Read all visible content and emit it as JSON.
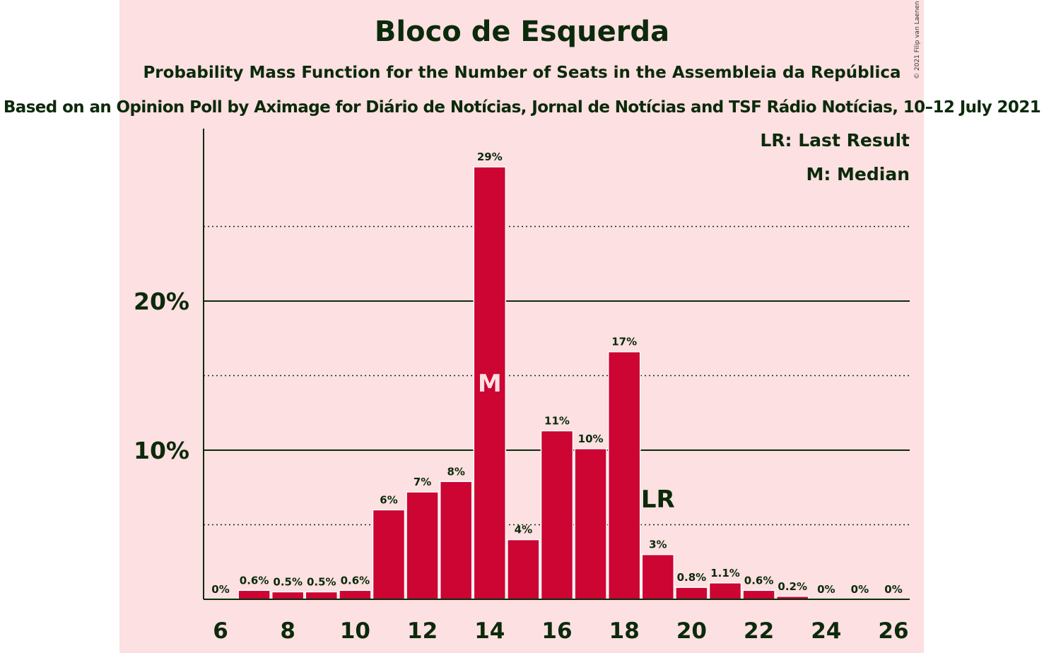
{
  "header": {
    "title": "Bloco de Esquerda",
    "subtitle": "Probability Mass Function for the Number of Seats in the Assembleia da República",
    "source": "Based on an Opinion Poll by Aximage for Diário de Notícias, Jornal de Notícias and TSF Rádio Notícias, 10–12 July 2021",
    "copyright": "© 2021 Filip van Laenen"
  },
  "legend": {
    "last_result": "LR: Last Result",
    "median": "M: Median"
  },
  "colors": {
    "bar": "#cc0533",
    "panel_background": "#fde0e1",
    "text": "#0b2a0b",
    "median_label": "#fde0e1"
  },
  "chart_data": {
    "type": "bar",
    "x": [
      6,
      7,
      8,
      9,
      10,
      11,
      12,
      13,
      14,
      15,
      16,
      17,
      18,
      19,
      20,
      21,
      22,
      23,
      24,
      25,
      26
    ],
    "values": [
      0,
      0.6,
      0.5,
      0.5,
      0.6,
      6.0,
      7.2,
      7.9,
      29.0,
      4.0,
      11.3,
      10.1,
      16.6,
      3.0,
      0.8,
      1.1,
      0.6,
      0.2,
      0,
      0,
      0
    ],
    "data_labels": [
      "0%",
      "0.6%",
      "0.5%",
      "0.5%",
      "0.6%",
      "6%",
      "7%",
      "8%",
      "29%",
      "4%",
      "11%",
      "10%",
      "17%",
      "3%",
      "0.8%",
      "1.1%",
      "0.6%",
      "0.2%",
      "0%",
      "0%",
      "0%"
    ],
    "x_tick_labels": [
      "6",
      "8",
      "10",
      "12",
      "14",
      "16",
      "18",
      "20",
      "22",
      "24",
      "26"
    ],
    "y_tick_labels": [
      "10%",
      "20%"
    ],
    "y_ticks": [
      10,
      20
    ],
    "y_minor_gridlines": [
      5,
      15,
      25
    ],
    "ylim": [
      0,
      31.5
    ],
    "median_seat": 14,
    "median_marker": "M",
    "last_result_seat": 19,
    "last_result_marker": "LR",
    "grid": true
  }
}
